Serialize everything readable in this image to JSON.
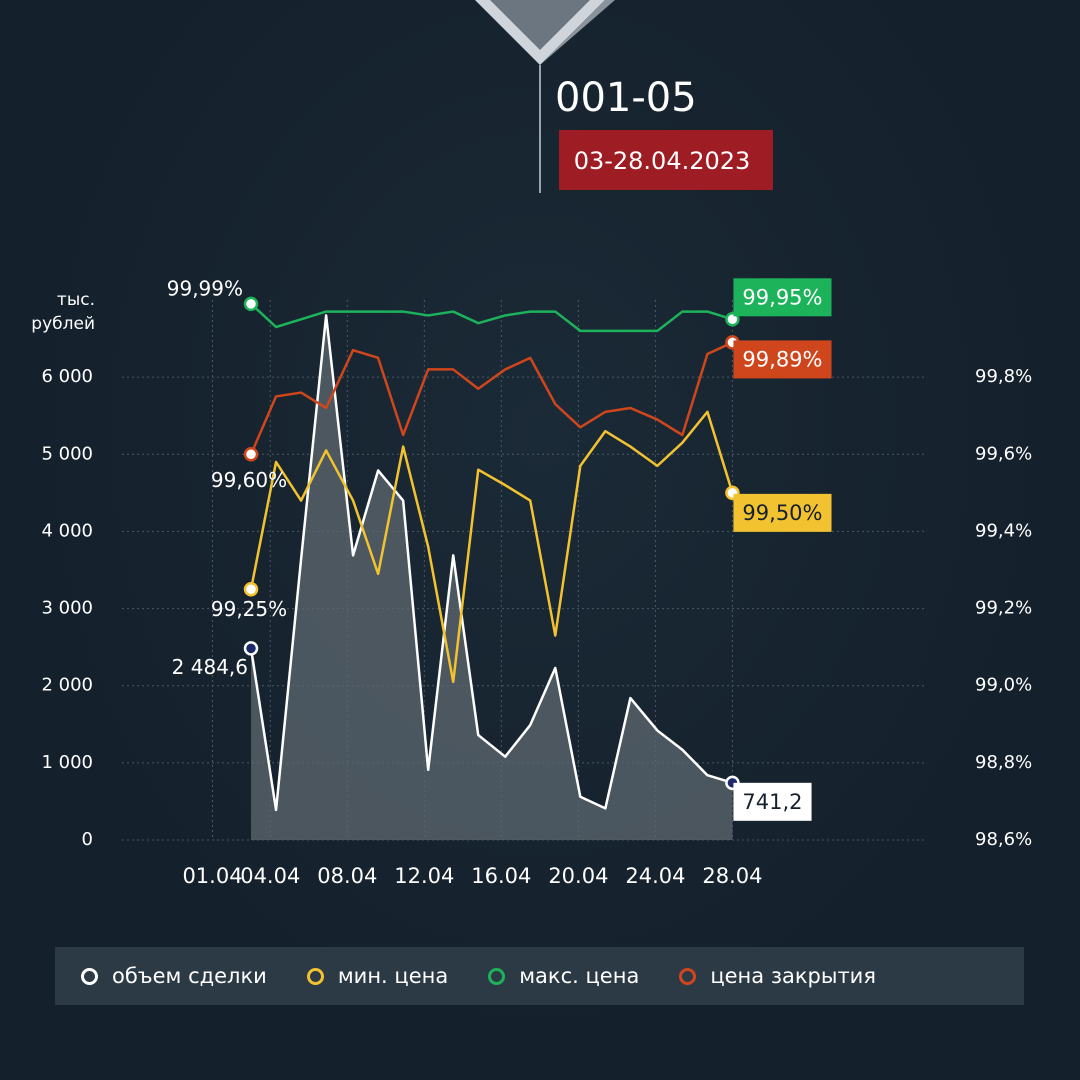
{
  "header": {
    "title": "001-05",
    "period": "03-28.04.2023"
  },
  "chart_data": {
    "type": "line",
    "y_label": "тыс. рублей",
    "x": [
      3,
      4.3,
      5.6,
      6.9,
      8.3,
      9.6,
      10.9,
      12.2,
      13.5,
      14.8,
      16.2,
      17.5,
      18.8,
      20.1,
      21.4,
      22.7,
      24.1,
      25.4,
      26.7,
      28
    ],
    "xlim": [
      -3.7,
      38
    ],
    "xticks": [
      {
        "value": 1,
        "label": "01.04"
      },
      {
        "value": 4,
        "label": "04.04"
      },
      {
        "value": 8,
        "label": "08.04"
      },
      {
        "value": 12,
        "label": "12.04"
      },
      {
        "value": 16,
        "label": "16.04"
      },
      {
        "value": 20,
        "label": "20.04"
      },
      {
        "value": 24,
        "label": "24.04"
      },
      {
        "value": 28,
        "label": "28.04"
      }
    ],
    "ylim": [
      0,
      7000
    ],
    "yticks": [
      0,
      {
        "value": 1000,
        "label": "1 000"
      },
      {
        "value": 2000,
        "label": "2 000"
      },
      {
        "value": 3000,
        "label": "3 000"
      },
      {
        "value": 4000,
        "label": "4 000"
      },
      {
        "value": 5000,
        "label": "5 000"
      },
      {
        "value": 6000,
        "label": "6 000"
      }
    ],
    "y2lim": [
      98.6,
      100.0
    ],
    "y2ticks": [
      {
        "value": 98.6,
        "label": "98,6%"
      },
      {
        "value": 98.8,
        "label": "98,8%"
      },
      {
        "value": 99.0,
        "label": "99,0%"
      },
      {
        "value": 99.2,
        "label": "99,2%"
      },
      {
        "value": 99.4,
        "label": "99,4%"
      },
      {
        "value": 99.6,
        "label": "99,6%"
      },
      {
        "value": 99.8,
        "label": "99,8%"
      }
    ],
    "grid": true,
    "series": [
      {
        "name": "объем сделки",
        "color": "#ffffff",
        "fill_color": "#5d6870",
        "axis": "y",
        "values": [
          2484.6,
          390,
          3640,
          6800,
          3690,
          4790,
          4400,
          910,
          3690,
          1360,
          1080,
          1490,
          2230,
          560,
          410,
          1840,
          1420,
          1170,
          840,
          741.2
        ],
        "value_labels": [
          "2 484,6",
          null,
          null,
          null,
          null,
          null,
          null,
          null,
          null,
          null,
          null,
          null,
          null,
          null,
          null,
          null,
          null,
          null,
          null,
          "741,2"
        ]
      },
      {
        "name": "мин. цена",
        "color": "#f2c230",
        "axis": "y2",
        "values": [
          99.25,
          99.58,
          99.48,
          99.61,
          99.48,
          99.29,
          99.62,
          99.36,
          99.01,
          99.56,
          99.52,
          99.48,
          99.13,
          99.57,
          99.66,
          99.62,
          99.57,
          99.63,
          99.71,
          99.5
        ],
        "value_labels": [
          "99,25%",
          null,
          null,
          null,
          null,
          null,
          null,
          null,
          null,
          null,
          null,
          null,
          null,
          null,
          null,
          null,
          null,
          null,
          null,
          "99,50%"
        ]
      },
      {
        "name": "макс. цена",
        "color": "#1db35b",
        "axis": "y2",
        "values": [
          99.99,
          99.93,
          99.95,
          99.97,
          99.97,
          99.97,
          99.97,
          99.96,
          99.97,
          99.94,
          99.96,
          99.97,
          99.97,
          99.92,
          99.92,
          99.92,
          99.92,
          99.97,
          99.97,
          99.95
        ],
        "value_labels": [
          "99,99%",
          null,
          null,
          null,
          null,
          null,
          null,
          null,
          null,
          null,
          null,
          null,
          null,
          null,
          null,
          null,
          null,
          null,
          null,
          "99,95%"
        ]
      },
      {
        "name": "цена закрытия",
        "color": "#d0461c",
        "axis": "y2",
        "values": [
          99.6,
          99.75,
          99.76,
          99.72,
          99.87,
          99.85,
          99.65,
          99.82,
          99.82,
          99.77,
          99.82,
          99.85,
          99.73,
          99.67,
          99.71,
          99.72,
          99.69,
          99.65,
          99.86,
          99.89
        ],
        "value_labels": [
          "99,60%",
          null,
          null,
          null,
          null,
          null,
          null,
          null,
          null,
          null,
          null,
          null,
          null,
          null,
          null,
          null,
          null,
          null,
          null,
          "99,89%"
        ]
      }
    ]
  }
}
